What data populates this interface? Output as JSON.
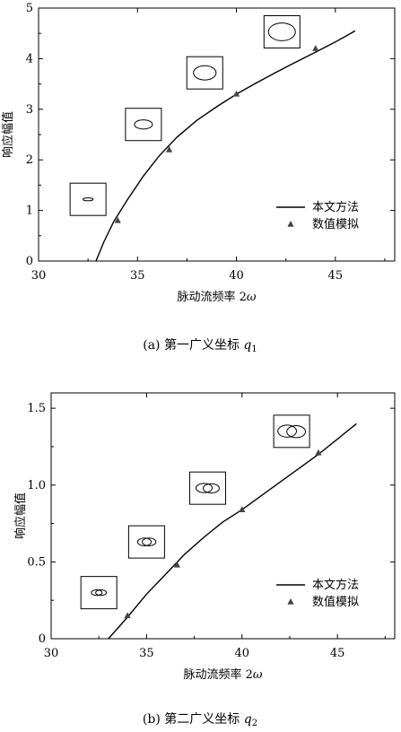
{
  "chart_data": [
    {
      "type": "line",
      "caption": "(a) 第一广义坐标 q1",
      "caption_prefix": "(a) 第一广义坐标",
      "caption_var": "q",
      "caption_sub": "1",
      "xlabel": "脉动流频率 2ω",
      "xlabel_text": "脉动流频率 2",
      "xlabel_var": "ω",
      "ylabel": "响应幅值",
      "xlim": [
        30,
        48
      ],
      "ylim": [
        0,
        5
      ],
      "xticks": [
        "30",
        "35",
        "40",
        "45"
      ],
      "yticks": [
        "0",
        "1",
        "2",
        "3",
        "4",
        "5"
      ],
      "grid": false,
      "legend_position": "bottom-right",
      "series": [
        {
          "name": "本文方法",
          "kind": "line",
          "x": [
            32.9,
            33.3,
            33.8,
            34.5,
            35.3,
            36.1,
            37.0,
            38.0,
            39.0,
            40.0,
            41.0,
            42.0,
            43.0,
            44.0,
            45.0,
            46.0
          ],
          "y": [
            0.0,
            0.38,
            0.78,
            1.22,
            1.68,
            2.08,
            2.45,
            2.78,
            3.05,
            3.3,
            3.52,
            3.73,
            3.93,
            4.13,
            4.33,
            4.55
          ]
        },
        {
          "name": "数值模拟",
          "kind": "marker",
          "x": [
            34.0,
            36.6,
            40.0,
            44.0
          ],
          "y": [
            0.8,
            2.2,
            3.3,
            4.2
          ]
        }
      ],
      "insets": [
        {
          "x": 32.5,
          "y": 1.22,
          "ellipses": [
            [
              0,
              0,
              0.28,
              0.04
            ]
          ]
        },
        {
          "x": 35.3,
          "y": 2.7,
          "ellipses": [
            [
              0,
              0,
              0.5,
              0.13
            ]
          ]
        },
        {
          "x": 38.4,
          "y": 3.72,
          "ellipses": [
            [
              0,
              0,
              0.63,
              0.2
            ]
          ]
        },
        {
          "x": 42.3,
          "y": 4.53,
          "ellipses": [
            [
              0,
              0,
              0.75,
              0.25
            ]
          ]
        }
      ]
    },
    {
      "type": "line",
      "caption": "(b) 第二广义坐标 q2",
      "caption_prefix": "(b) 第二广义坐标",
      "caption_var": "q",
      "caption_sub": "2",
      "xlabel": "脉动流频率 2ω",
      "xlabel_text": "脉动流频率 2",
      "xlabel_var": "ω",
      "ylabel": "响应幅值",
      "xlim": [
        30,
        48
      ],
      "ylim": [
        0,
        1.6
      ],
      "xticks": [
        "30",
        "35",
        "40",
        "45"
      ],
      "yticks": [
        "0",
        "0.5",
        "1.0",
        "1.5"
      ],
      "grid": false,
      "legend_position": "bottom-right",
      "series": [
        {
          "name": "本文方法",
          "kind": "line",
          "x": [
            33.0,
            33.5,
            34.0,
            35.0,
            36.0,
            37.0,
            38.0,
            39.0,
            40.0,
            41.0,
            42.0,
            43.0,
            44.0,
            45.0,
            46.0
          ],
          "y": [
            0.0,
            0.07,
            0.14,
            0.29,
            0.42,
            0.55,
            0.66,
            0.76,
            0.84,
            0.93,
            1.02,
            1.11,
            1.2,
            1.3,
            1.4
          ]
        },
        {
          "name": "数值模拟",
          "kind": "marker",
          "x": [
            34.0,
            36.6,
            40.0,
            44.0
          ],
          "y": [
            0.15,
            0.48,
            0.84,
            1.21
          ]
        }
      ],
      "insets": [
        {
          "x": 32.5,
          "y": 0.3,
          "ellipses": [
            [
              -0.12,
              0,
              0.3,
              0.08
            ],
            [
              0.12,
              0,
              0.3,
              0.08
            ]
          ]
        },
        {
          "x": 35.0,
          "y": 0.63,
          "ellipses": [
            [
              -0.12,
              0,
              0.38,
              0.11
            ],
            [
              0.14,
              0,
              0.38,
              0.11
            ]
          ]
        },
        {
          "x": 38.2,
          "y": 0.98,
          "ellipses": [
            [
              -0.2,
              0.01,
              0.45,
              0.13
            ],
            [
              0.2,
              -0.01,
              0.45,
              0.13
            ]
          ]
        },
        {
          "x": 42.6,
          "y": 1.35,
          "ellipses": [
            [
              -0.25,
              0.01,
              0.52,
              0.17
            ],
            [
              0.25,
              -0.02,
              0.52,
              0.17
            ]
          ]
        }
      ]
    }
  ]
}
